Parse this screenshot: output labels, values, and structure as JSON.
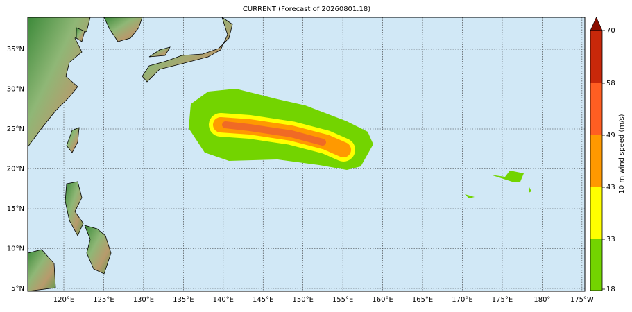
{
  "title": "CURRENT (Forecast of 20260801.18)",
  "longitude_labels": [
    "120°E",
    "125°E",
    "130°E",
    "135°E",
    "140°E",
    "145°E",
    "150°E",
    "155°E",
    "160°E",
    "165°E",
    "170°E",
    "175°E",
    "180°",
    "175°W"
  ],
  "latitude_labels": [
    "35°N",
    "30°N",
    "25°N",
    "20°N",
    "15°N",
    "10°N",
    "5°N"
  ],
  "colorbar": {
    "title": "10 m wind speed (m/s)",
    "labels": [
      "70",
      "58",
      "49",
      "43",
      "33",
      "18"
    ]
  }
}
